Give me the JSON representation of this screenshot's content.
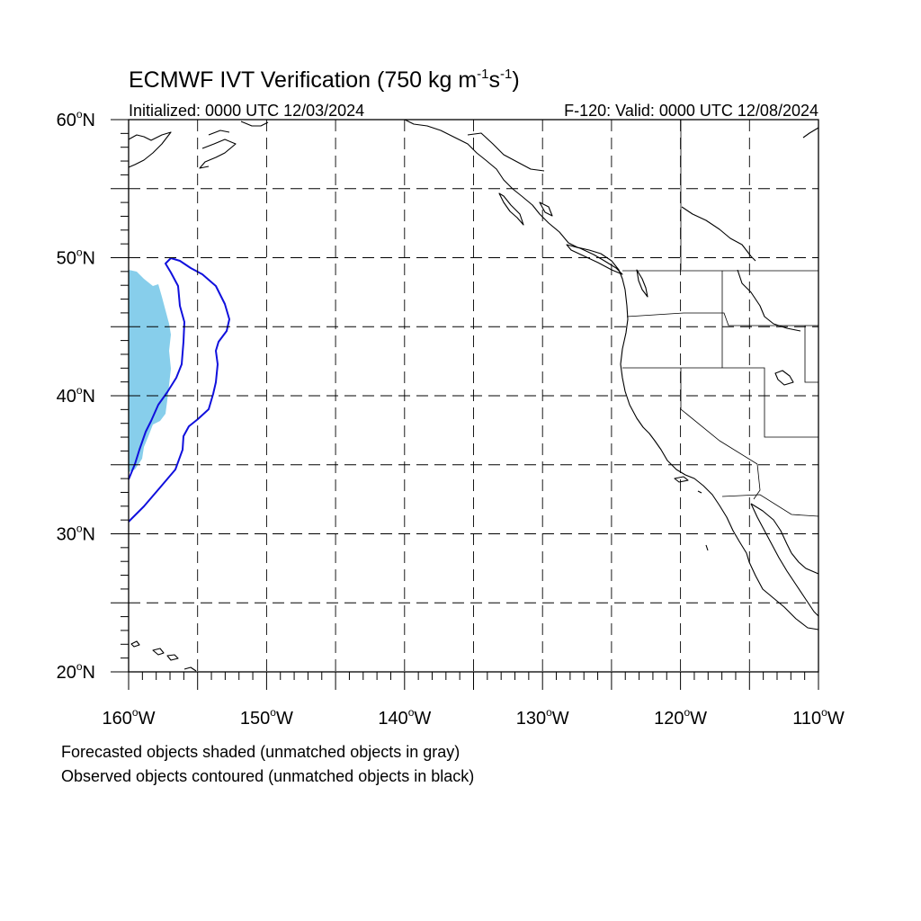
{
  "title_main": "ECMWF IVT Verification (750 kg m",
  "title_sup1": "-1",
  "title_mid": "s",
  "title_sup2": "-1",
  "title_end": ")",
  "initialized": "Initialized: 0000 UTC 12/03/2024",
  "valid": "F-120: Valid: 0000 UTC 12/08/2024",
  "lat_labels": [
    {
      "deg": "60",
      "hemi": "N",
      "lat": 60
    },
    {
      "deg": "50",
      "hemi": "N",
      "lat": 50
    },
    {
      "deg": "40",
      "hemi": "N",
      "lat": 40
    },
    {
      "deg": "30",
      "hemi": "N",
      "lat": 30
    },
    {
      "deg": "20",
      "hemi": "N",
      "lat": 20
    }
  ],
  "lon_labels": [
    {
      "deg": "160",
      "hemi": "W",
      "lon": -160
    },
    {
      "deg": "150",
      "hemi": "W",
      "lon": -150
    },
    {
      "deg": "140",
      "hemi": "W",
      "lon": -140
    },
    {
      "deg": "130",
      "hemi": "W",
      "lon": -130
    },
    {
      "deg": "120",
      "hemi": "W",
      "lon": -120
    },
    {
      "deg": "110",
      "hemi": "W",
      "lon": -110
    }
  ],
  "legend_line1": "Forecasted objects shaded (unmatched objects in gray)",
  "legend_line2": "Observed objects contoured (unmatched objects in black)",
  "colors": {
    "forecast_fill": "#87ceeb",
    "observed_contour": "#1010dd"
  },
  "map_extent": {
    "lon_min": -160,
    "lon_max": -110,
    "lat_min": 20,
    "lat_max": 60
  }
}
